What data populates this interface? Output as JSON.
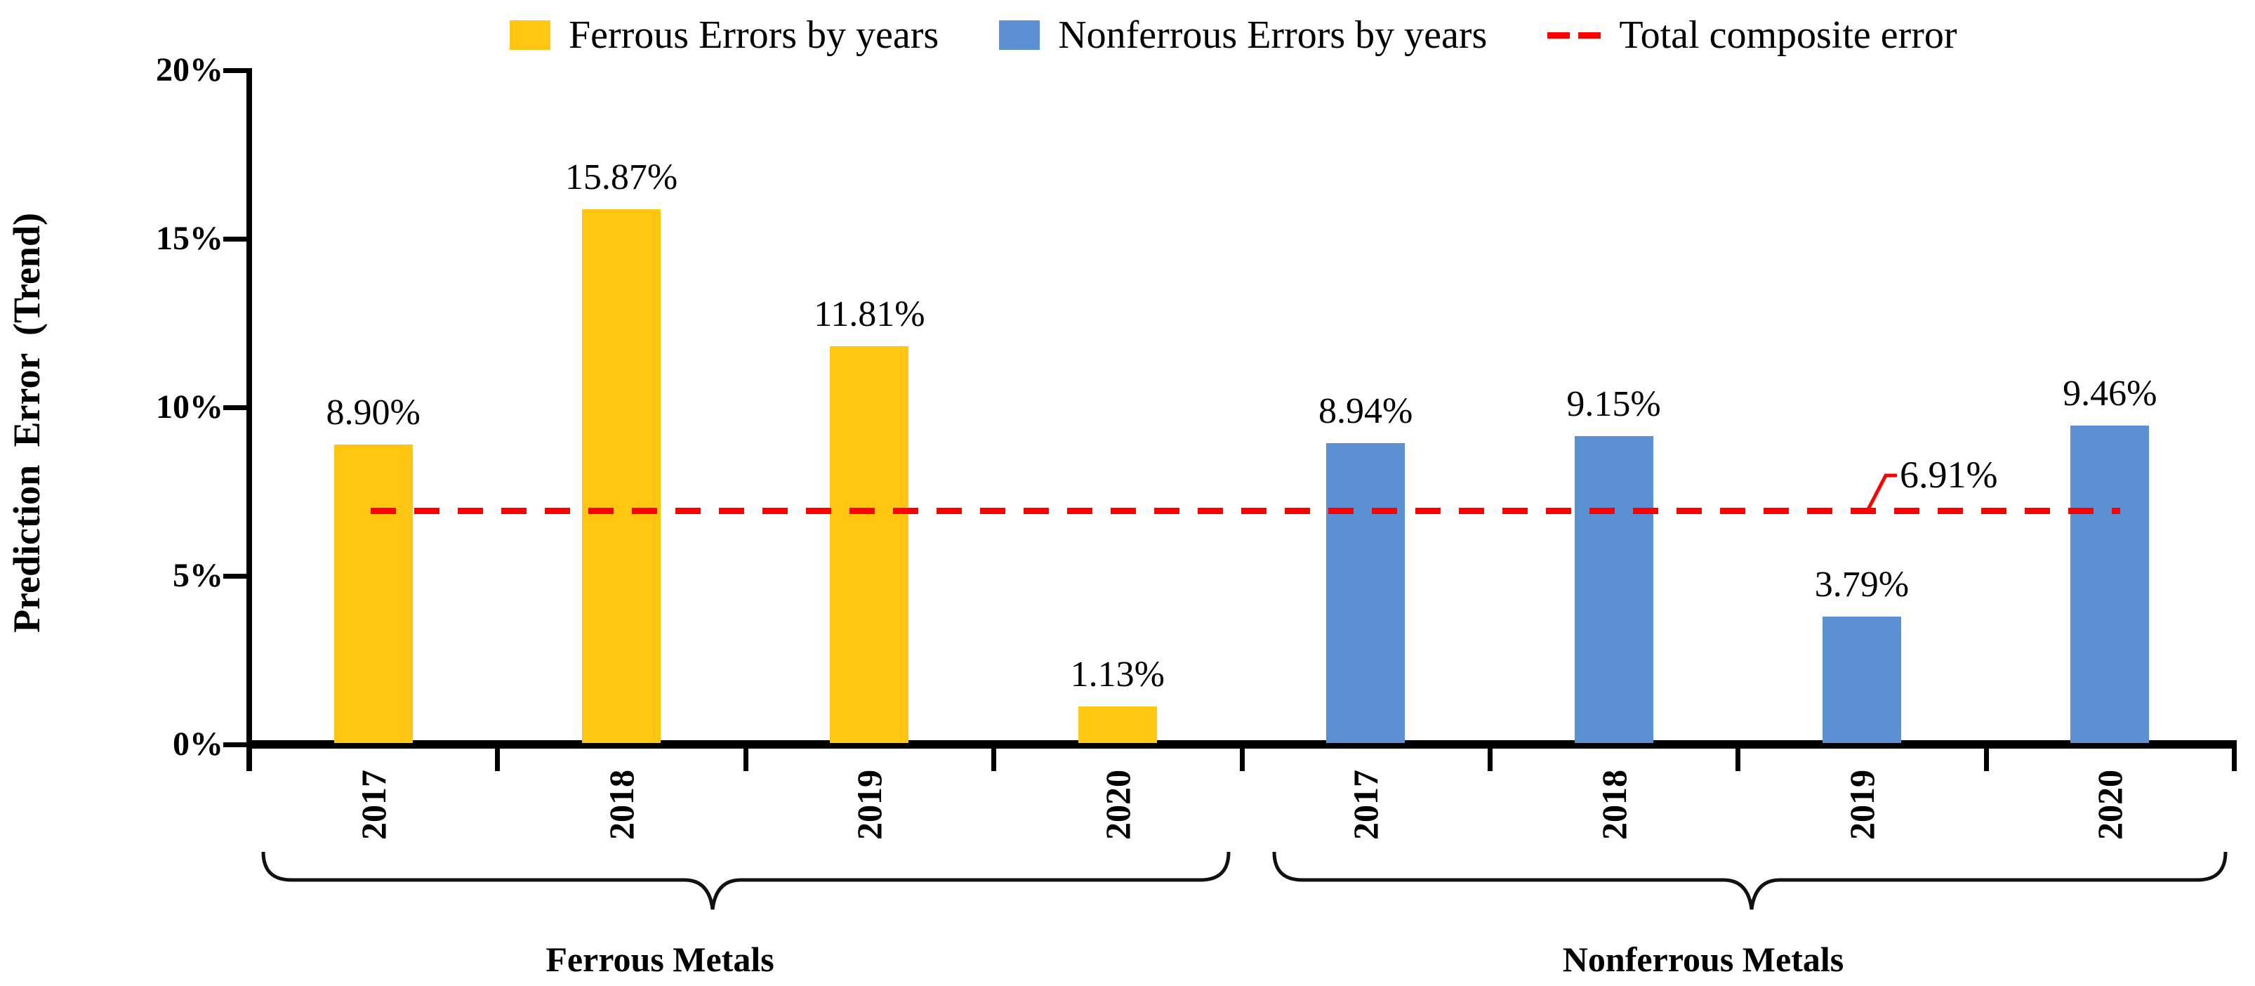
{
  "chart_data": {
    "type": "bar",
    "title": "",
    "ylabel": "Prediction Error (Trend)",
    "xlabel": "",
    "ylim": [
      0,
      20
    ],
    "y_ticks": [
      "0%",
      "5%",
      "10%",
      "15%",
      "20%"
    ],
    "y_tick_values": [
      0,
      5,
      10,
      15,
      20
    ],
    "grid": false,
    "legend_position": "top",
    "categories": [
      "2017",
      "2018",
      "2019",
      "2020"
    ],
    "groups": [
      {
        "name": "Ferrous Metals",
        "series": "Ferrous Errors by years",
        "color": "#FFC512",
        "values": [
          8.9,
          15.87,
          11.81,
          1.13
        ],
        "value_labels": [
          "8.90%",
          "15.87%",
          "11.81%",
          "1.13%"
        ]
      },
      {
        "name": "Nonferrous Metals",
        "series": "Nonferrous Errors by years",
        "color": "#5B91D2",
        "values": [
          8.94,
          9.15,
          3.79,
          9.46
        ],
        "value_labels": [
          "8.94%",
          "9.15%",
          "3.79%",
          "9.46%"
        ]
      }
    ],
    "reference_line": {
      "label": "Total composite error",
      "value": 6.91,
      "value_label": "6.91%",
      "color": "#FF0000",
      "style": "dashed"
    },
    "legend": [
      {
        "label": "Ferrous Errors by years",
        "marker": "square",
        "color": "#FFC512"
      },
      {
        "label": "Nonferrous Errors by years",
        "marker": "square",
        "color": "#5B91D2"
      },
      {
        "label": "Total composite error",
        "marker": "dashes",
        "color": "#FF0000"
      }
    ]
  }
}
